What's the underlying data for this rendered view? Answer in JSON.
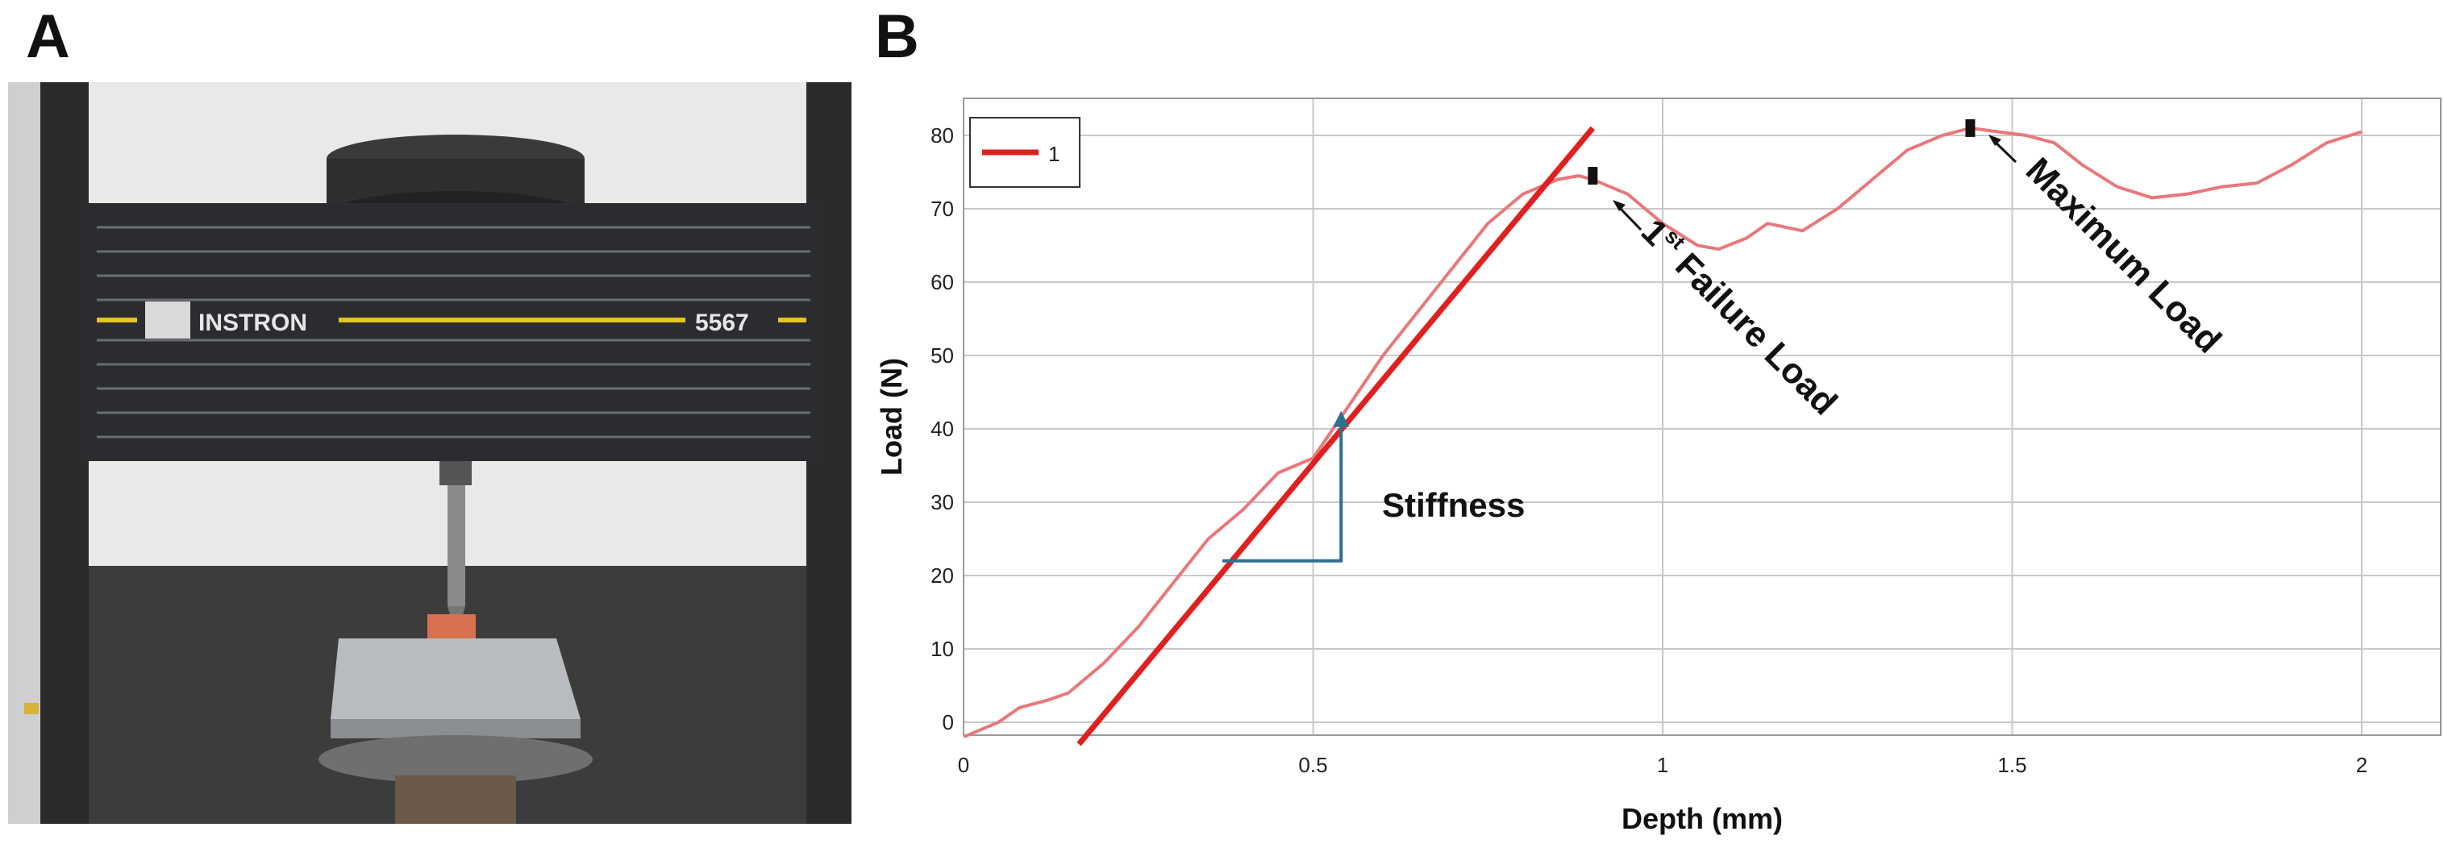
{
  "panels": {
    "a_label": "A",
    "b_label": "B"
  },
  "photo": {
    "description_icon": "instron-testing-machine-photo",
    "brand": "INSTRON",
    "model": "5567"
  },
  "chart_data": {
    "type": "line",
    "title": "",
    "xlabel": "Depth (mm)",
    "ylabel": "Load (N)",
    "xlim": [
      0,
      2.1
    ],
    "ylim": [
      -3,
      85
    ],
    "xticks": [
      0,
      0.5,
      1,
      1.5,
      2
    ],
    "xtick_labels": [
      "0",
      "0.5",
      "1",
      "1.5",
      "2"
    ],
    "yticks": [
      0,
      10,
      20,
      30,
      40,
      50,
      60,
      70,
      80
    ],
    "ytick_labels": [
      "0",
      "10",
      "20",
      "30",
      "40",
      "50",
      "60",
      "70",
      "80"
    ],
    "grid": true,
    "legend": {
      "position": "top-left",
      "entries": [
        "1"
      ]
    },
    "series": [
      {
        "name": "1",
        "color": "#e8787a",
        "x": [
          0,
          0.05,
          0.08,
          0.12,
          0.15,
          0.2,
          0.25,
          0.3,
          0.35,
          0.4,
          0.45,
          0.5,
          0.55,
          0.6,
          0.65,
          0.7,
          0.75,
          0.8,
          0.85,
          0.88,
          0.9,
          0.95,
          1.0,
          1.05,
          1.08,
          1.12,
          1.15,
          1.2,
          1.25,
          1.3,
          1.35,
          1.4,
          1.44,
          1.48,
          1.52,
          1.56,
          1.6,
          1.65,
          1.7,
          1.75,
          1.8,
          1.85,
          1.9,
          1.95,
          2.0
        ],
        "y": [
          -2,
          0,
          2,
          3,
          4,
          8,
          13,
          19,
          25,
          29,
          34,
          36,
          43,
          50,
          56,
          62,
          68,
          72,
          74,
          74.5,
          74,
          72,
          68,
          65,
          64.5,
          66,
          68,
          67,
          70,
          74,
          78,
          80,
          81,
          80.5,
          80,
          79,
          76,
          73,
          71.5,
          72,
          73,
          73.5,
          76,
          79,
          80.5
        ]
      }
    ],
    "stiffness_line": {
      "color": "#e02020",
      "x": [
        0.165,
        0.9
      ],
      "y": [
        -3,
        81
      ]
    },
    "stiffness_triangle": {
      "color": "#2e7090",
      "x": [
        0.37,
        0.54,
        0.54
      ],
      "y": [
        22,
        22,
        42
      ]
    },
    "markers": [
      {
        "x": 0.9,
        "y": 74.5
      },
      {
        "x": 1.44,
        "y": 81
      }
    ],
    "annotations": {
      "stiffness": "Stiffness",
      "first_failure_prefix": "1",
      "first_failure_sup": "st",
      "first_failure_suffix": " Failure Load",
      "maximum": "Maximum Load"
    }
  }
}
